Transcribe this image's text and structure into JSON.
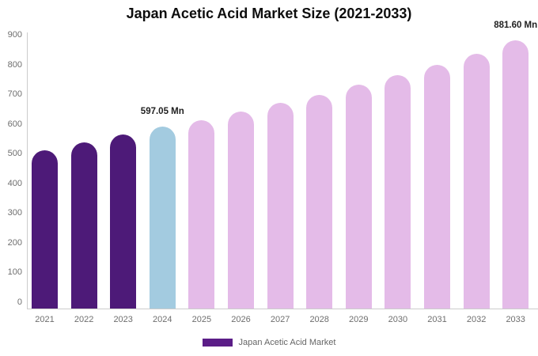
{
  "chart_data": {
    "type": "bar",
    "title": "Japan Acetic Acid Market Size (2021-2033)",
    "value_unit": "Mn",
    "categories": [
      "2021",
      "2022",
      "2023",
      "2024",
      "2025",
      "2026",
      "2027",
      "2028",
      "2029",
      "2030",
      "2031",
      "2032",
      "2033"
    ],
    "values": [
      521,
      545,
      571,
      597.05,
      620,
      648,
      676,
      703,
      736,
      767,
      800,
      837,
      881.6
    ],
    "series_name": "Japan Acetic Acid Market",
    "data_labels": {
      "2024": "597.05 Mn",
      "2033": "881.60 Mn"
    },
    "ylim": [
      0,
      900
    ],
    "yticks": [
      0,
      100,
      200,
      300,
      400,
      500,
      600,
      700,
      800,
      900
    ],
    "xlabel": "",
    "ylabel": "",
    "grid": false,
    "legend_position": "bottom",
    "colors": {
      "historical": "#4D1A78",
      "current": "#A3CBE0",
      "forecast": "#E4BBE8",
      "legend_swatch": "#5B1D87",
      "axis_line": "#cccccc",
      "tick_text": "#6e6e6e"
    },
    "bar_roles": [
      "historical",
      "historical",
      "historical",
      "current",
      "forecast",
      "forecast",
      "forecast",
      "forecast",
      "forecast",
      "forecast",
      "forecast",
      "forecast",
      "forecast"
    ],
    "legend": {
      "items": [
        {
          "label": "Japan Acetic Acid Market"
        }
      ]
    }
  }
}
